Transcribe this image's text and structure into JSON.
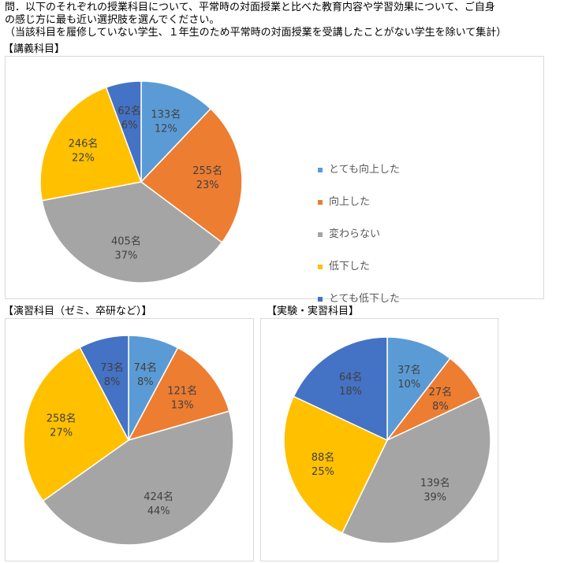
{
  "question": {
    "line1": "問．以下のそれぞれの授業科目について、平常時の対面授業と比べた教育内容や学習効果について、ご自身",
    "line2": "の感じ方に最も近い選択肢を選んでください。",
    "line3": "（当該科目を履修していない学生、１年生のため平常時の対面授業を受講したことがない学生を除いて集計）"
  },
  "legend": [
    {
      "label": "とても向上した",
      "color": "#5b9bd5"
    },
    {
      "label": "向上した",
      "color": "#ed7d31"
    },
    {
      "label": "変わらない",
      "color": "#a5a5a5"
    },
    {
      "label": "低下した",
      "color": "#ffc000"
    },
    {
      "label": "とても低下した",
      "color": "#4472c4"
    }
  ],
  "chart_data": [
    {
      "type": "pie",
      "title": "【講義科目】",
      "categories": [
        "とても向上した",
        "向上した",
        "変わらない",
        "低下した",
        "とても低下した"
      ],
      "values": [
        133,
        255,
        405,
        246,
        62
      ],
      "percent_labels": [
        "12%",
        "23%",
        "37%",
        "22%",
        "6%"
      ],
      "count_labels": [
        "133名",
        "255名",
        "405名",
        "246名",
        "62名"
      ],
      "colors": [
        "#5b9bd5",
        "#ed7d31",
        "#a5a5a5",
        "#ffc000",
        "#4472c4"
      ],
      "legend_position": "right"
    },
    {
      "type": "pie",
      "title": "【演習科目（ゼミ、卒研など）】",
      "categories": [
        "とても向上した",
        "向上した",
        "変わらない",
        "低下した",
        "とても低下した"
      ],
      "values": [
        74,
        121,
        424,
        258,
        73
      ],
      "percent_labels": [
        "8%",
        "13%",
        "44%",
        "27%",
        "8%"
      ],
      "count_labels": [
        "74名",
        "121名",
        "424名",
        "258名",
        "73名"
      ],
      "colors": [
        "#5b9bd5",
        "#ed7d31",
        "#a5a5a5",
        "#ffc000",
        "#4472c4"
      ]
    },
    {
      "type": "pie",
      "title": "【実験・実習科目】",
      "categories": [
        "とても向上した",
        "向上した",
        "変わらない",
        "低下した",
        "とても低下した"
      ],
      "values": [
        37,
        27,
        139,
        88,
        64
      ],
      "percent_labels": [
        "10%",
        "8%",
        "39%",
        "25%",
        "18%"
      ],
      "count_labels": [
        "37名",
        "27名",
        "139名",
        "88名",
        "64名"
      ],
      "colors": [
        "#5b9bd5",
        "#ed7d31",
        "#a5a5a5",
        "#ffc000",
        "#4472c4"
      ]
    }
  ]
}
